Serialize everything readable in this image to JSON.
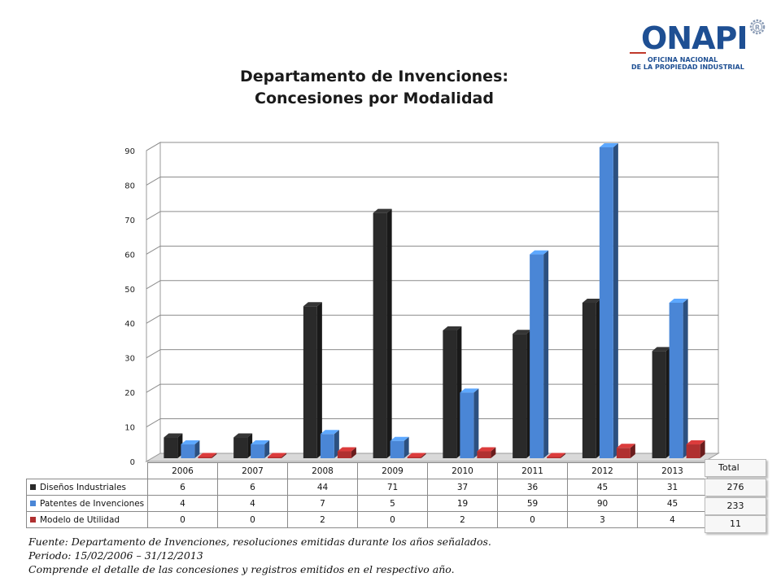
{
  "logo": {
    "name": "ONAPI",
    "subtitle_line1": "OFICINA NACIONAL",
    "subtitle_line2": "DE LA PROPIEDAD INDUSTRIAL"
  },
  "colors": {
    "series": [
      "#2a2a2a",
      "#4a86d6",
      "#b03030"
    ],
    "grid": "#8c8c8c"
  },
  "chart_data": {
    "type": "bar",
    "title": [
      "Departamento de Invenciones:",
      "Concesiones por Modalidad"
    ],
    "categories": [
      "2006",
      "2007",
      "2008",
      "2009",
      "2010",
      "2011",
      "2012",
      "2013"
    ],
    "series": [
      {
        "name": "Diseños Industriales",
        "values": [
          6,
          6,
          44,
          71,
          37,
          36,
          45,
          31
        ]
      },
      {
        "name": "Patentes de Invenciones",
        "values": [
          4,
          4,
          7,
          5,
          19,
          59,
          90,
          45
        ]
      },
      {
        "name": "Modelo de Utilidad",
        "values": [
          0,
          0,
          2,
          0,
          2,
          0,
          3,
          4
        ]
      }
    ],
    "yticks": [
      0,
      10,
      20,
      30,
      40,
      50,
      60,
      70,
      80,
      90
    ],
    "ylim": [
      0,
      90
    ],
    "grid": true,
    "legend": "data-table-below",
    "style": "3d-clustered-column"
  },
  "totals": {
    "header": "Total",
    "values": [
      "276",
      "233",
      "11"
    ]
  },
  "footnotes": [
    "Fuente: Departamento de Invenciones, resoluciones emitidas durante los años señalados.",
    "Periodo: 15/02/2006 – 31/12/2013",
    "Comprende el detalle de las concesiones y registros emitidos en el respectivo año."
  ]
}
